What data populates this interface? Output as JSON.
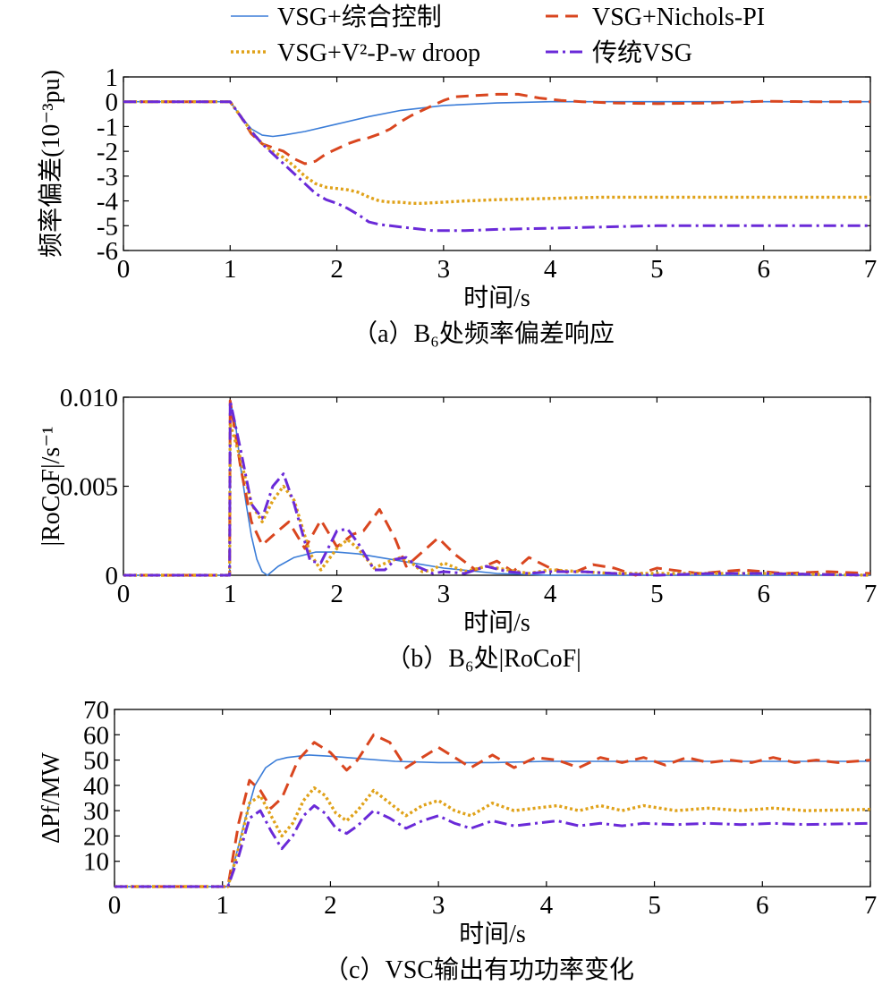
{
  "legend": {
    "items": [
      {
        "label": "VSG+综合控制",
        "color": "#3b7dd8",
        "dash": "solid"
      },
      {
        "label": "VSG+Nichols-PI",
        "color": "#d9461f",
        "dash": "dashed"
      },
      {
        "label": "VSG+V²-P-w droop",
        "color": "#e0a21a",
        "dash": "dotted"
      },
      {
        "label": "传统VSG",
        "color": "#6a2ad8",
        "dash": "dashdot"
      }
    ]
  },
  "chart_data": [
    {
      "type": "line",
      "caption": "（a）B₆处频率偏差响应",
      "xlabel": "时间/s",
      "ylabel": "频率偏差(10⁻³pu)",
      "xlim": [
        0,
        7
      ],
      "ylim": [
        -6,
        1
      ],
      "xticks": [
        0,
        1,
        2,
        3,
        4,
        5,
        6,
        7
      ],
      "yticks": [
        1,
        0,
        -1,
        -2,
        -3,
        -4,
        -5,
        -6
      ],
      "series": [
        {
          "name": "VSG+综合控制",
          "x": [
            0,
            1,
            1.1,
            1.2,
            1.3,
            1.4,
            1.5,
            1.7,
            2,
            2.3,
            2.6,
            3,
            3.5,
            4,
            5,
            6,
            7
          ],
          "y": [
            0,
            0,
            -0.6,
            -1.1,
            -1.35,
            -1.4,
            -1.35,
            -1.2,
            -0.9,
            -0.6,
            -0.35,
            -0.15,
            -0.05,
            0,
            0,
            0,
            0
          ]
        },
        {
          "name": "VSG+Nichols-PI",
          "x": [
            0,
            1,
            1.1,
            1.2,
            1.3,
            1.4,
            1.5,
            1.6,
            1.7,
            1.8,
            1.9,
            2.0,
            2.1,
            2.2,
            2.3,
            2.4,
            2.5,
            2.6,
            2.7,
            2.8,
            2.9,
            3.0,
            3.1,
            3.3,
            3.5,
            3.7,
            3.9,
            4.1,
            4.3,
            4.6,
            5.0,
            5.5,
            6.0,
            6.5,
            7.0
          ],
          "y": [
            0,
            0,
            -0.6,
            -1.3,
            -1.7,
            -1.85,
            -2.0,
            -2.3,
            -2.5,
            -2.4,
            -2.1,
            -1.9,
            -1.7,
            -1.55,
            -1.45,
            -1.3,
            -1.1,
            -0.8,
            -0.55,
            -0.35,
            -0.15,
            0.05,
            0.2,
            0.25,
            0.3,
            0.3,
            0.15,
            0.05,
            0.0,
            -0.05,
            -0.08,
            -0.05,
            0.02,
            0.0,
            0.0
          ]
        },
        {
          "name": "VSG+V²-P-w droop",
          "x": [
            0,
            1,
            1.1,
            1.2,
            1.3,
            1.4,
            1.5,
            1.6,
            1.7,
            1.8,
            1.9,
            2.0,
            2.1,
            2.2,
            2.3,
            2.4,
            2.5,
            2.6,
            2.7,
            2.8,
            3.0,
            3.2,
            3.5,
            4.0,
            4.5,
            5.0,
            6.0,
            7.0
          ],
          "y": [
            0,
            0,
            -0.6,
            -1.2,
            -1.7,
            -2.0,
            -2.25,
            -2.6,
            -3.0,
            -3.3,
            -3.45,
            -3.5,
            -3.55,
            -3.65,
            -3.85,
            -4.0,
            -4.05,
            -4.05,
            -4.1,
            -4.1,
            -4.05,
            -4.0,
            -3.95,
            -3.9,
            -3.85,
            -3.85,
            -3.85,
            -3.85
          ]
        },
        {
          "name": "传统VSG",
          "x": [
            0,
            1,
            1.1,
            1.2,
            1.3,
            1.4,
            1.5,
            1.6,
            1.7,
            1.8,
            1.9,
            2.0,
            2.1,
            2.2,
            2.3,
            2.4,
            2.5,
            2.6,
            2.7,
            2.8,
            2.9,
            3.0,
            3.2,
            3.5,
            4.0,
            4.5,
            5.0,
            6.0,
            7.0
          ],
          "y": [
            0,
            0,
            -0.6,
            -1.2,
            -1.7,
            -2.1,
            -2.5,
            -2.9,
            -3.3,
            -3.7,
            -3.95,
            -4.1,
            -4.3,
            -4.55,
            -4.85,
            -4.95,
            -5.0,
            -5.05,
            -5.1,
            -5.15,
            -5.2,
            -5.2,
            -5.2,
            -5.15,
            -5.1,
            -5.05,
            -5.0,
            -5.0,
            -5.0
          ]
        }
      ]
    },
    {
      "type": "line",
      "caption": "（b）B₆处|RoCoF|",
      "xlabel": "时间/s",
      "ylabel": "|RoCoF|/s⁻¹",
      "xlim": [
        0,
        7
      ],
      "ylim": [
        0,
        0.01
      ],
      "xticks": [
        0,
        1,
        2,
        3,
        4,
        5,
        6,
        7
      ],
      "yticks": [
        0,
        0.005,
        0.01
      ],
      "ytick_labels": [
        "0",
        "0.005",
        "0.010"
      ],
      "series": [
        {
          "name": "VSG+综合控制",
          "x": [
            0,
            0.995,
            1.0,
            1.05,
            1.1,
            1.15,
            1.2,
            1.25,
            1.3,
            1.35,
            1.45,
            1.6,
            1.8,
            2.0,
            2.2,
            2.4,
            2.7,
            3.0,
            3.5,
            4.0,
            5.0,
            7.0
          ],
          "y": [
            0,
            0,
            0.0098,
            0.0085,
            0.006,
            0.004,
            0.0022,
            0.0009,
            0.0002,
            0.0,
            0.0005,
            0.001,
            0.0013,
            0.0013,
            0.0012,
            0.001,
            0.0007,
            0.0004,
            0.0001,
            0.0,
            0.0,
            0.0
          ]
        },
        {
          "name": "VSG+Nichols-PI",
          "x": [
            0,
            0.995,
            1.0,
            1.1,
            1.2,
            1.3,
            1.45,
            1.55,
            1.7,
            1.85,
            2.0,
            2.15,
            2.25,
            2.4,
            2.55,
            2.65,
            2.8,
            2.95,
            3.1,
            3.3,
            3.5,
            3.65,
            3.8,
            4.0,
            4.2,
            4.4,
            4.6,
            4.8,
            5.0,
            5.4,
            5.8,
            6.2,
            6.6,
            7.0
          ],
          "y": [
            0,
            0,
            0.0098,
            0.006,
            0.003,
            0.0017,
            0.0025,
            0.003,
            0.0015,
            0.0031,
            0.0016,
            0.0023,
            0.0025,
            0.0037,
            0.002,
            0.0005,
            0.0013,
            0.0021,
            0.0012,
            0.0003,
            0.0008,
            0.0002,
            0.001,
            0.0004,
            0.0001,
            0.0006,
            0.0004,
            0.0,
            0.0004,
            0.0001,
            0.0003,
            0.0001,
            0.0002,
            0.0001
          ]
        },
        {
          "name": "VSG+V²-P-w droop",
          "x": [
            0,
            0.995,
            1.0,
            1.1,
            1.2,
            1.3,
            1.4,
            1.5,
            1.6,
            1.75,
            1.85,
            2.0,
            2.1,
            2.2,
            2.35,
            2.5,
            2.6,
            2.7,
            2.8,
            2.9,
            3.0,
            3.2,
            3.4,
            3.6,
            3.8,
            4.0,
            4.3,
            4.6,
            5.0,
            5.5,
            6.0,
            7.0
          ],
          "y": [
            0,
            0,
            0.0085,
            0.0065,
            0.004,
            0.003,
            0.0042,
            0.005,
            0.0042,
            0.0012,
            0.0003,
            0.0015,
            0.002,
            0.0015,
            0.0004,
            0.0008,
            0.001,
            0.0007,
            0.0002,
            0.0003,
            0.0007,
            0.0002,
            0.0005,
            0.0003,
            0.0001,
            0.0003,
            0.0002,
            0.0001,
            0.0001,
            0.0001,
            0.0001,
            0.0
          ]
        },
        {
          "name": "传统VSG",
          "x": [
            0,
            0.995,
            1.0,
            1.1,
            1.2,
            1.3,
            1.4,
            1.5,
            1.6,
            1.75,
            1.85,
            2.0,
            2.1,
            2.2,
            2.35,
            2.45,
            2.55,
            2.65,
            2.75,
            2.9,
            3.0,
            3.2,
            3.4,
            3.6,
            3.8,
            4.0,
            4.3,
            4.6,
            5.0,
            5.5,
            6.0,
            7.0
          ],
          "y": [
            0,
            0,
            0.0098,
            0.007,
            0.004,
            0.0032,
            0.005,
            0.0057,
            0.004,
            0.0008,
            0.0007,
            0.0025,
            0.0026,
            0.0018,
            0.0003,
            0.0003,
            0.0009,
            0.001,
            0.0005,
            0.0001,
            0.0002,
            0.0001,
            0.0005,
            0.0002,
            0.0001,
            0.0002,
            0.0002,
            0.0001,
            0.0,
            0.0001,
            0.0001,
            0.0
          ]
        }
      ]
    },
    {
      "type": "line",
      "caption": "（c）VSC输出有功功率变化",
      "xlabel": "时间/s",
      "ylabel": "ΔPf/MW",
      "xlim": [
        0,
        7
      ],
      "ylim": [
        0,
        70
      ],
      "xticks": [
        0,
        1,
        2,
        3,
        4,
        5,
        6,
        7
      ],
      "yticks": [
        10,
        20,
        30,
        40,
        50,
        60,
        70
      ],
      "series": [
        {
          "name": "VSG+综合控制",
          "x": [
            0,
            1.05,
            1.1,
            1.2,
            1.3,
            1.4,
            1.5,
            1.6,
            1.8,
            2.0,
            2.3,
            2.6,
            3.0,
            3.5,
            4.0,
            5.0,
            6.0,
            7.0
          ],
          "y": [
            0,
            0,
            8,
            25,
            40,
            47,
            50,
            51,
            52,
            51.5,
            50.5,
            49.5,
            49,
            49,
            49.5,
            49.5,
            49.5,
            49.5
          ]
        },
        {
          "name": "VSG+Nichols-PI",
          "x": [
            0,
            1.05,
            1.15,
            1.25,
            1.35,
            1.45,
            1.55,
            1.7,
            1.85,
            2.0,
            2.15,
            2.25,
            2.4,
            2.55,
            2.7,
            2.85,
            3.0,
            3.15,
            3.3,
            3.5,
            3.7,
            3.9,
            4.1,
            4.3,
            4.5,
            4.7,
            4.9,
            5.1,
            5.3,
            5.5,
            5.7,
            5.9,
            6.1,
            6.3,
            6.5,
            6.7,
            7.0
          ],
          "y": [
            0,
            0,
            25,
            42,
            38,
            31,
            35,
            50,
            57,
            53,
            46,
            50,
            60,
            57,
            47,
            51,
            55,
            51,
            47,
            52,
            47,
            51,
            50,
            47,
            51,
            49,
            51,
            48,
            51,
            49,
            50,
            49,
            51,
            49,
            50,
            49,
            50
          ]
        },
        {
          "name": "VSG+V²-P-w droop",
          "x": [
            0,
            1.05,
            1.15,
            1.25,
            1.35,
            1.45,
            1.55,
            1.65,
            1.75,
            1.85,
            1.95,
            2.05,
            2.15,
            2.25,
            2.4,
            2.55,
            2.7,
            2.85,
            3.0,
            3.15,
            3.3,
            3.5,
            3.7,
            3.9,
            4.1,
            4.3,
            4.5,
            4.7,
            4.9,
            5.2,
            5.5,
            5.8,
            6.1,
            6.4,
            7.0
          ],
          "y": [
            0,
            0,
            15,
            33,
            36,
            28,
            20,
            25,
            34,
            39,
            36,
            29,
            26,
            30,
            38,
            33,
            28,
            32,
            34,
            30,
            28,
            33,
            30,
            31,
            32,
            30,
            32,
            30,
            32,
            30,
            31,
            30,
            31,
            30,
            30.5
          ]
        },
        {
          "name": "传统VSG",
          "x": [
            0,
            1.05,
            1.15,
            1.25,
            1.35,
            1.45,
            1.55,
            1.65,
            1.75,
            1.85,
            1.95,
            2.05,
            2.15,
            2.25,
            2.4,
            2.55,
            2.7,
            2.85,
            3.0,
            3.15,
            3.3,
            3.5,
            3.7,
            3.9,
            4.1,
            4.3,
            4.5,
            4.7,
            4.9,
            5.2,
            5.5,
            5.8,
            6.1,
            6.4,
            7.0
          ],
          "y": [
            0,
            0,
            12,
            27,
            30,
            22,
            15,
            20,
            28,
            32,
            29,
            23,
            21,
            24,
            30,
            27,
            23,
            26,
            28,
            25,
            23,
            26,
            24,
            25,
            26,
            24,
            25,
            24,
            25,
            24.5,
            25,
            24.5,
            25,
            24.5,
            25
          ]
        }
      ]
    }
  ]
}
